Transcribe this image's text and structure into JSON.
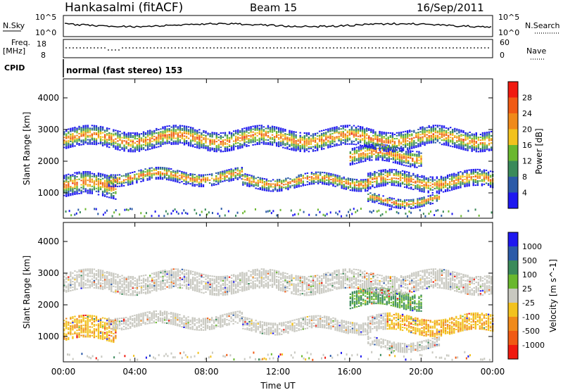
{
  "header": {
    "station": "Hankasalmi (fitACF)",
    "beam": "Beam 15",
    "date": "16/Sep/2011"
  },
  "panels": {
    "nsky_label": "N.Sky",
    "nsearch_label": "N.Search",
    "nsky_tick_top": "10^5",
    "nsky_tick_bottom": "10^0",
    "freq_label": "Freq.",
    "freq_unit": "[MHz]",
    "freq_tick_top": "18",
    "freq_tick_bottom": "8",
    "nave_label": "Nave",
    "nave_tick_top": "60",
    "nave_tick_bottom": "0",
    "cpid_label": "CPID",
    "cpid_value": "normal (fast stereo) 153"
  },
  "colors": {
    "power": [
      "#1e18f0",
      "#2b5aa8",
      "#3a8a5a",
      "#6ab82e",
      "#f2c21e",
      "#f08a1a",
      "#f05a14",
      "#f01a10"
    ],
    "velocity": [
      "#f01a10",
      "#f05a14",
      "#f08a1a",
      "#f2c21e",
      "#c8c8c0",
      "#6ab82e",
      "#3a8a5a",
      "#2b5aa8",
      "#1e18f0"
    ]
  },
  "chart_data": [
    {
      "type": "heatmap",
      "ylabel": "Slant Range [km]",
      "xlabel": "Time UT",
      "x_ticks": [
        "00:00",
        "04:00",
        "08:00",
        "12:00",
        "16:00",
        "20:00",
        "00:00"
      ],
      "y_ticks": [
        "1000",
        "2000",
        "3000",
        "4000"
      ],
      "ylim": [
        200,
        4600
      ],
      "xlim_hours": [
        0,
        24
      ],
      "colorbar": {
        "label": "Power [dB]",
        "ticks": [
          "4",
          "8",
          "12",
          "16",
          "20",
          "24",
          "28"
        ]
      },
      "bands": [
        {
          "t0": 0.0,
          "t1": 3.0,
          "r": 1200,
          "w": 350
        },
        {
          "t0": 2.5,
          "t1": 10.0,
          "r": 1500,
          "w": 200
        },
        {
          "t0": 10.0,
          "t1": 17.0,
          "r": 1350,
          "w": 200
        },
        {
          "t0": 17.0,
          "t1": 24.0,
          "r": 1350,
          "w": 250
        },
        {
          "t0": 16.0,
          "t1": 20.0,
          "r": 2150,
          "w": 250
        },
        {
          "t0": 17.0,
          "t1": 21.0,
          "r": 750,
          "w": 150
        },
        {
          "t0": 0.0,
          "t1": 24.0,
          "r": 2700,
          "w": 300
        }
      ]
    },
    {
      "type": "heatmap",
      "ylabel": "Slant Range [km]",
      "xlabel": "Time UT",
      "x_ticks": [
        "00:00",
        "04:00",
        "08:00",
        "12:00",
        "16:00",
        "20:00",
        "00:00"
      ],
      "y_ticks": [
        "1000",
        "2000",
        "3000",
        "4000"
      ],
      "ylim": [
        200,
        4600
      ],
      "xlim_hours": [
        0,
        24
      ],
      "colorbar": {
        "label": "Velocity [m s^-1]",
        "ticks": [
          "1000",
          "500",
          "100",
          "25",
          "-25",
          "-100",
          "-500",
          "-1000"
        ]
      },
      "bands": [
        {
          "t0": 0.0,
          "t1": 3.0,
          "r": 1200,
          "w": 350
        },
        {
          "t0": 2.5,
          "t1": 10.0,
          "r": 1500,
          "w": 200
        },
        {
          "t0": 10.0,
          "t1": 17.0,
          "r": 1350,
          "w": 200
        },
        {
          "t0": 17.0,
          "t1": 24.0,
          "r": 1350,
          "w": 250
        },
        {
          "t0": 16.0,
          "t1": 20.0,
          "r": 2150,
          "w": 250
        },
        {
          "t0": 17.0,
          "t1": 21.0,
          "r": 750,
          "w": 150
        },
        {
          "t0": 0.0,
          "t1": 24.0,
          "r": 2700,
          "w": 300
        }
      ]
    }
  ]
}
